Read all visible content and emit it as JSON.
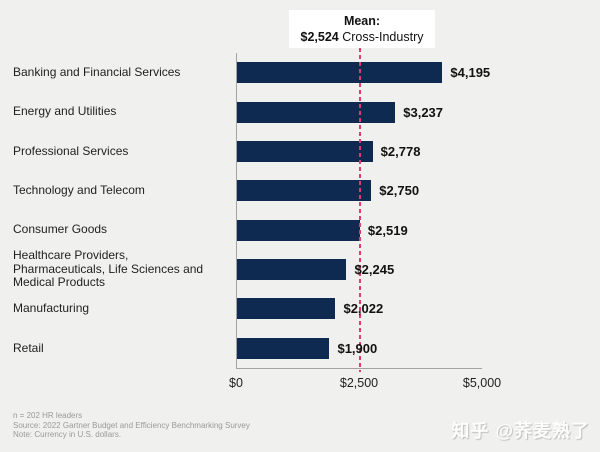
{
  "chart_data": {
    "type": "bar",
    "orientation": "horizontal",
    "categories": [
      "Banking and Financial Services",
      "Energy and Utilities",
      "Professional Services",
      "Technology and Telecom",
      "Consumer Goods",
      "Healthcare Providers, Pharmaceuticals, Life Sciences and Medical Products",
      "Manufacturing",
      "Retail"
    ],
    "values": [
      4195,
      3237,
      2778,
      2750,
      2519,
      2245,
      2022,
      1900
    ],
    "value_labels": [
      "$4,195",
      "$3,237",
      "$2,778",
      "$2,750",
      "$2,519",
      "$2,245",
      "$2,022",
      "$1,900"
    ],
    "xlim": [
      0,
      5000
    ],
    "xtick_values": [
      0,
      2500,
      5000
    ],
    "xticks": [
      "$0",
      "$2,500",
      "$5,000"
    ],
    "grid": "off",
    "mean": {
      "label": "Mean:",
      "value": 2524,
      "value_text": "$2,524",
      "suffix": " Cross-Industry"
    },
    "colors": {
      "bar": "#0e2a50",
      "mean_line": "#e23a6d",
      "background": "#f0f0ee",
      "axis": "#a3a3a1"
    }
  },
  "footnotes": [
    "n = 202 HR leaders",
    "Source: 2022 Gartner Budget and Efficiency Benchmarking Survey",
    "Note: Currency in U.S. dollars."
  ],
  "watermark": {
    "brand": "知乎",
    "user": "@荞麦熟了"
  }
}
